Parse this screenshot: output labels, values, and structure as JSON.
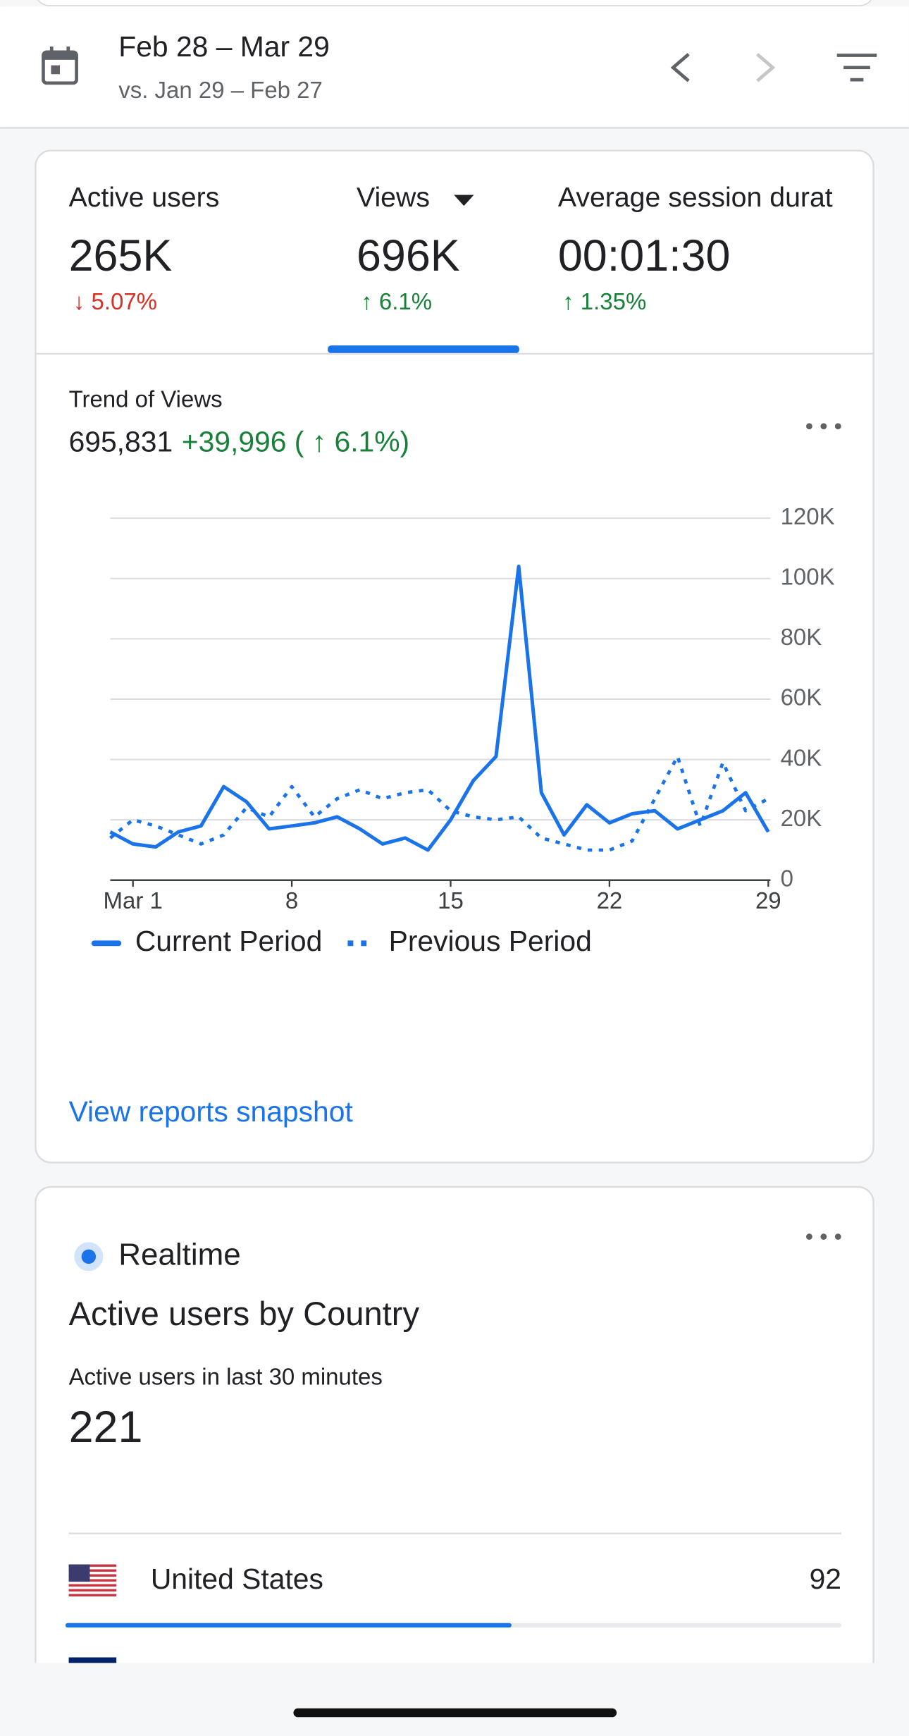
{
  "header": {
    "date_range": "Feb 28 – Mar 29",
    "comparison": "vs. Jan 29 – Feb 27"
  },
  "metrics": [
    {
      "label": "Active users",
      "value": "265K",
      "change": "↓ 5.07%",
      "trend": "down"
    },
    {
      "label": "Views",
      "value": "696K",
      "change": "↑ 6.1%",
      "trend": "up"
    },
    {
      "label": "Average session durat",
      "value": "00:01:30",
      "change": "↑ 1.35%",
      "trend": "up"
    }
  ],
  "chart_data": {
    "type": "line",
    "title": "Trend of Views",
    "total": "695,831",
    "change": "+39,996 ( ↑ 6.1%)",
    "categories": [
      null,
      "Mar 1",
      null,
      null,
      null,
      null,
      null,
      null,
      "8",
      null,
      null,
      null,
      null,
      null,
      null,
      "15",
      null,
      null,
      null,
      null,
      null,
      null,
      "22",
      null,
      null,
      null,
      null,
      null,
      null,
      "29"
    ],
    "series": [
      {
        "name": "Current Period",
        "color": "#1a73e8",
        "line_style": "solid",
        "values": [
          16000,
          12000,
          11000,
          16000,
          18000,
          31000,
          26000,
          17000,
          18000,
          19000,
          21000,
          17000,
          12000,
          14000,
          10000,
          20000,
          33000,
          41000,
          104000,
          29000,
          15000,
          25000,
          19000,
          22000,
          23000,
          17000,
          20000,
          23000,
          29000,
          16000
        ]
      },
      {
        "name": "Previous Period",
        "color": "#1a73e8",
        "line_style": "dotted",
        "values": [
          14000,
          20000,
          18000,
          15000,
          12000,
          15000,
          24000,
          21000,
          31000,
          21000,
          27000,
          30000,
          27000,
          29000,
          30000,
          23000,
          21000,
          20000,
          21000,
          14000,
          12000,
          10000,
          10000,
          13000,
          27000,
          41000,
          18000,
          39000,
          23000,
          27000
        ]
      }
    ],
    "ylim": [
      0,
      120000
    ],
    "yticks": [
      0,
      {
        "value": 20000,
        "label": "20K"
      },
      {
        "value": 40000,
        "label": "40K"
      },
      {
        "value": 60000,
        "label": "60K"
      },
      {
        "value": 80000,
        "label": "80K"
      },
      {
        "value": 100000,
        "label": "100K"
      },
      {
        "value": 120000,
        "label": "120K"
      }
    ],
    "grid": true,
    "legend": "bottom-left"
  },
  "link": "View reports snapshot",
  "realtime": {
    "label": "Realtime",
    "title": "Active users by Country",
    "subtitle": "Active users in last 30 minutes",
    "value": "221",
    "rows": [
      {
        "country": "United States",
        "users": "92"
      }
    ]
  }
}
